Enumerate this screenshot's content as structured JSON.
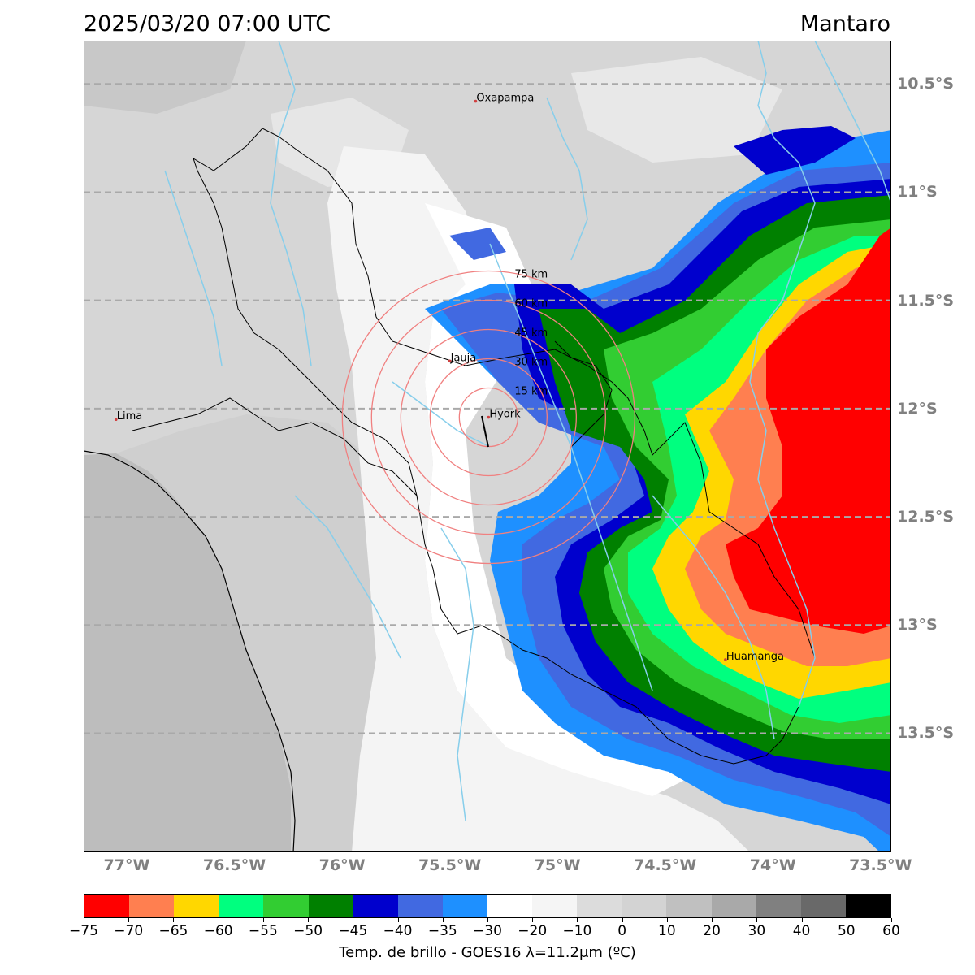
{
  "title": {
    "datetime": "2025/03/20 07:00 UTC",
    "region": "Mantaro"
  },
  "map": {
    "lon_range": [
      -77.2,
      -73.45
    ],
    "lat_range": [
      -14.05,
      -10.3
    ],
    "lon_ticks": [
      {
        "value": -77.0,
        "label": "77°W"
      },
      {
        "value": -76.5,
        "label": "76.5°W"
      },
      {
        "value": -76.0,
        "label": "76°W"
      },
      {
        "value": -75.5,
        "label": "75.5°W"
      },
      {
        "value": -75.0,
        "label": "75°W"
      },
      {
        "value": -74.5,
        "label": "74.5°W"
      },
      {
        "value": -74.0,
        "label": "74°W"
      },
      {
        "value": -73.5,
        "label": "73.5°W"
      }
    ],
    "lat_ticks": [
      {
        "value": -10.5,
        "label": "10.5°S"
      },
      {
        "value": -11.0,
        "label": "11°S"
      },
      {
        "value": -11.5,
        "label": "11.5°S"
      },
      {
        "value": -12.0,
        "label": "12°S"
      },
      {
        "value": -12.5,
        "label": "12.5°S"
      },
      {
        "value": -13.0,
        "label": "13°S"
      },
      {
        "value": -13.5,
        "label": "13.5°S"
      }
    ],
    "cities": [
      {
        "name": "Oxapampa",
        "lon": -75.38,
        "lat": -10.58
      },
      {
        "name": "Jauja",
        "lon": -75.5,
        "lat": -11.78
      },
      {
        "name": "Hyork",
        "lon": -75.32,
        "lat": -12.04
      },
      {
        "name": "Lima",
        "lon": -77.05,
        "lat": -12.05
      },
      {
        "name": "Huamanga",
        "lon": -74.22,
        "lat": -13.16
      }
    ],
    "radar": {
      "center_lon": -75.32,
      "center_lat": -12.04,
      "rings": [
        {
          "radius_km": 15,
          "label": "15 km"
        },
        {
          "radius_km": 30,
          "label": "30 km"
        },
        {
          "radius_km": 45,
          "label": "45 km"
        },
        {
          "radius_km": 60,
          "label": "60 km"
        },
        {
          "radius_km": 75,
          "label": "75 km"
        }
      ],
      "ring_color": "#f08080"
    },
    "river_color": "#87ceeb",
    "gridline_color": "#a9a9a9"
  },
  "colorbar": {
    "label": "Temp. de brillo - GOES16 λ=11.2μm (ºC)",
    "bins": [
      {
        "from": -75,
        "to": -70,
        "color": "#ff0000"
      },
      {
        "from": -70,
        "to": -65,
        "color": "#ff7f50"
      },
      {
        "from": -65,
        "to": -60,
        "color": "#ffd700"
      },
      {
        "from": -60,
        "to": -55,
        "color": "#00ff7f"
      },
      {
        "from": -55,
        "to": -50,
        "color": "#32cd32"
      },
      {
        "from": -50,
        "to": -45,
        "color": "#008000"
      },
      {
        "from": -45,
        "to": -40,
        "color": "#0000cd"
      },
      {
        "from": -40,
        "to": -35,
        "color": "#4169e1"
      },
      {
        "from": -35,
        "to": -30,
        "color": "#1e90ff"
      },
      {
        "from": -30,
        "to": -20,
        "color": "#ffffff"
      },
      {
        "from": -20,
        "to": -10,
        "color": "#f5f5f5"
      },
      {
        "from": -10,
        "to": 0,
        "color": "#dcdcdc"
      },
      {
        "from": 0,
        "to": 10,
        "color": "#d3d3d3"
      },
      {
        "from": 10,
        "to": 20,
        "color": "#c0c0c0"
      },
      {
        "from": 20,
        "to": 30,
        "color": "#a9a9a9"
      },
      {
        "from": 30,
        "to": 40,
        "color": "#808080"
      },
      {
        "from": 40,
        "to": 50,
        "color": "#696969"
      },
      {
        "from": 50,
        "to": 60,
        "color": "#000000"
      }
    ],
    "tick_labels": [
      "−75",
      "−70",
      "−65",
      "−60",
      "−55",
      "−50",
      "−45",
      "−40",
      "−35",
      "−30",
      "−20",
      "−10",
      "0",
      "10",
      "20",
      "30",
      "40",
      "50",
      "60"
    ]
  }
}
